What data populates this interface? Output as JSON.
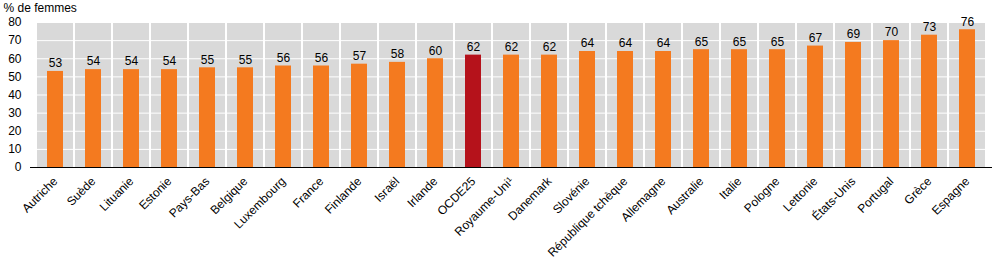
{
  "chart_data": {
    "type": "bar",
    "y_label": "% de femmes",
    "categories": [
      "Autriche",
      "Suède",
      "Lituanie",
      "Estonie",
      "Pays-Bas",
      "Belgique",
      "Luxembourg",
      "France",
      "Finlande",
      "Israël",
      "Irlande",
      "OCDE25",
      "Royaume-Uni¹",
      "Danemark",
      "Slovénie",
      "République tchèque",
      "Allemagne",
      "Australie",
      "Italie",
      "Pologne",
      "Lettonie",
      "États-Unis",
      "Portugal",
      "Grèce",
      "Espagne"
    ],
    "values": [
      53,
      54,
      54,
      54,
      55,
      55,
      56,
      56,
      57,
      58,
      60,
      62,
      62,
      62,
      64,
      64,
      64,
      65,
      65,
      65,
      67,
      69,
      70,
      73,
      76
    ],
    "colors": [
      "#f47a1f",
      "#f47a1f",
      "#f47a1f",
      "#f47a1f",
      "#f47a1f",
      "#f47a1f",
      "#f47a1f",
      "#f47a1f",
      "#f47a1f",
      "#f47a1f",
      "#f47a1f",
      "#b5121b",
      "#f47a1f",
      "#f47a1f",
      "#f47a1f",
      "#f47a1f",
      "#f47a1f",
      "#f47a1f",
      "#f47a1f",
      "#f47a1f",
      "#f47a1f",
      "#f47a1f",
      "#f47a1f",
      "#f47a1f",
      "#f47a1f"
    ],
    "ylim": [
      0,
      80
    ],
    "yticks": [
      0,
      10,
      20,
      30,
      40,
      50,
      60,
      70,
      80
    ],
    "grid": true,
    "data_labels": true
  }
}
